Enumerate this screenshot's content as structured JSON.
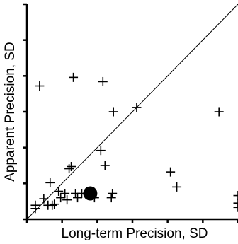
{
  "chart_data": {
    "type": "scatter",
    "title": "",
    "xlabel": "Long-term Precision, SD",
    "ylabel": "Apparent Precision, SD",
    "xlim": [
      0,
      1
    ],
    "ylim": [
      0,
      1
    ],
    "grid": false,
    "reference_line": "y=x",
    "series": [
      {
        "marker": "plus",
        "points": [
          {
            "x": 0.04,
            "y": 0.05
          },
          {
            "x": 0.04,
            "y": 0.065
          },
          {
            "x": 0.06,
            "y": 0.62
          },
          {
            "x": 0.08,
            "y": 0.095
          },
          {
            "x": 0.1,
            "y": 0.065
          },
          {
            "x": 0.11,
            "y": 0.17
          },
          {
            "x": 0.12,
            "y": 0.065
          },
          {
            "x": 0.13,
            "y": 0.07
          },
          {
            "x": 0.15,
            "y": 0.13
          },
          {
            "x": 0.16,
            "y": 0.1
          },
          {
            "x": 0.18,
            "y": 0.12
          },
          {
            "x": 0.19,
            "y": 0.09
          },
          {
            "x": 0.2,
            "y": 0.235
          },
          {
            "x": 0.21,
            "y": 0.245
          },
          {
            "x": 0.22,
            "y": 0.66
          },
          {
            "x": 0.23,
            "y": 0.12
          },
          {
            "x": 0.24,
            "y": 0.1
          },
          {
            "x": 0.26,
            "y": 0.12
          },
          {
            "x": 0.29,
            "y": 0.12
          },
          {
            "x": 0.32,
            "y": 0.1
          },
          {
            "x": 0.35,
            "y": 0.32
          },
          {
            "x": 0.36,
            "y": 0.64
          },
          {
            "x": 0.37,
            "y": 0.25
          },
          {
            "x": 0.4,
            "y": 0.1
          },
          {
            "x": 0.405,
            "y": 0.12
          },
          {
            "x": 0.41,
            "y": 0.5
          },
          {
            "x": 0.52,
            "y": 0.52
          },
          {
            "x": 0.68,
            "y": 0.22
          },
          {
            "x": 0.71,
            "y": 0.15
          },
          {
            "x": 0.91,
            "y": 0.5
          },
          {
            "x": 1.0,
            "y": 0.11
          },
          {
            "x": 1.0,
            "y": 0.075
          },
          {
            "x": 1.0,
            "y": 0.055
          }
        ]
      },
      {
        "marker": "filled-circle",
        "points": [
          {
            "x": 0.3,
            "y": 0.12
          }
        ]
      }
    ]
  }
}
